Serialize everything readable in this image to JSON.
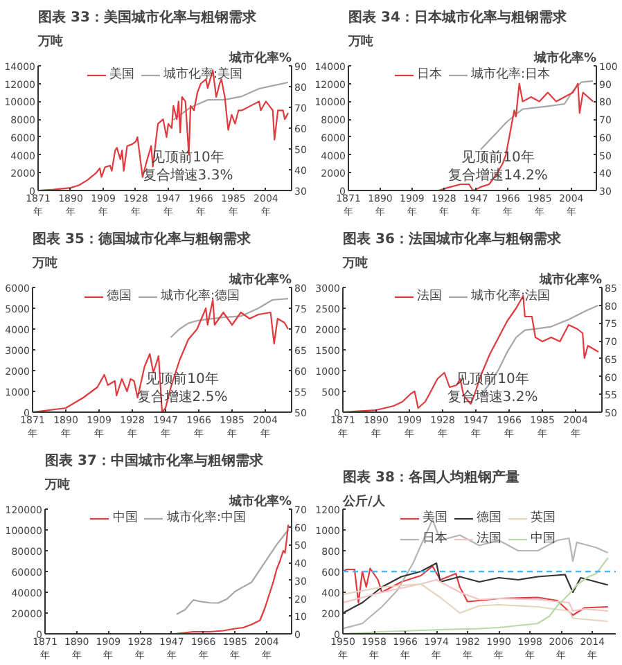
{
  "chart_data": [
    {
      "type": "line",
      "title": "图表 33：美国城市化率与粗钢需求",
      "ylabel": "万吨",
      "y2label": "城市化率%",
      "legend": "top",
      "annotations": [
        "见顶前10年",
        "复合增速3.3%"
      ],
      "xlim": [
        1871,
        2019
      ],
      "xticks": [
        {
          "value": 1871,
          "label": "1871\n年"
        },
        {
          "value": 1890,
          "label": "1890\n年"
        },
        {
          "value": 1909,
          "label": "1909\n年"
        },
        {
          "value": 1928,
          "label": "1928\n年"
        },
        {
          "value": 1947,
          "label": "1947\n年"
        },
        {
          "value": 1966,
          "label": "1966\n年"
        },
        {
          "value": 1985,
          "label": "1985\n年"
        },
        {
          "value": 2004,
          "label": "2004\n年"
        }
      ],
      "ylim": [
        0,
        14000
      ],
      "yticks": [
        0,
        2000,
        4000,
        6000,
        8000,
        10000,
        12000,
        14000
      ],
      "y2lim": [
        30,
        90
      ],
      "y2ticks": [
        30,
        40,
        50,
        60,
        70,
        80,
        90
      ],
      "series": [
        {
          "name": "美国",
          "color": "#e03a3e",
          "x": [
            1871,
            1880,
            1890,
            1895,
            1900,
            1905,
            1907,
            1908,
            1910,
            1913,
            1914,
            1916,
            1917,
            1919,
            1920,
            1921,
            1923,
            1926,
            1928,
            1929,
            1930,
            1932,
            1934,
            1937,
            1938,
            1940,
            1941,
            1944,
            1946,
            1947,
            1949,
            1950,
            1952,
            1953,
            1954,
            1955,
            1957,
            1959,
            1960,
            1962,
            1964,
            1966,
            1969,
            1970,
            1973,
            1975,
            1977,
            1978,
            1980,
            1982,
            1984,
            1986,
            1988,
            1990,
            1995,
            2000,
            2001,
            2004,
            2006,
            2008,
            2009,
            2011,
            2014,
            2015,
            2017
          ],
          "values": [
            0,
            100,
            300,
            600,
            1200,
            2000,
            2500,
            1500,
            2600,
            2800,
            2200,
            4500,
            4800,
            3500,
            4500,
            2200,
            5000,
            5200,
            5500,
            6000,
            4500,
            1500,
            3000,
            5000,
            2700,
            6000,
            7500,
            8000,
            6000,
            7500,
            7000,
            9500,
            8000,
            10000,
            6500,
            10500,
            10000,
            4000,
            9500,
            9000,
            11000,
            12000,
            12500,
            11500,
            13500,
            10500,
            12000,
            12500,
            10500,
            6800,
            8500,
            7500,
            9000,
            9000,
            9500,
            10000,
            9000,
            10000,
            9500,
            9000,
            5700,
            9000,
            9000,
            8000,
            8700
          ]
        },
        {
          "name": "城市化率:美国",
          "color": "#a6a6a6",
          "axis": "y2",
          "x": [
            1950,
            1960,
            1970,
            1980,
            1990,
            2000,
            2010,
            2017
          ],
          "values": [
            64,
            70,
            73.6,
            73.7,
            75.3,
            79,
            80.8,
            82
          ]
        }
      ]
    },
    {
      "type": "line",
      "title": "图表 34：日本城市化率与粗钢需求",
      "ylabel": "万吨",
      "y2label": "城市化率%",
      "legend": "top",
      "annotations": [
        "见顶前10年",
        "复合增速14.2%"
      ],
      "xlim": [
        1871,
        2019
      ],
      "xticks": [
        {
          "value": 1871,
          "label": "1871\n年"
        },
        {
          "value": 1890,
          "label": "1890\n年"
        },
        {
          "value": 1909,
          "label": "1909\n年"
        },
        {
          "value": 1928,
          "label": "1928\n年"
        },
        {
          "value": 1947,
          "label": "1947\n年"
        },
        {
          "value": 1966,
          "label": "1966\n年"
        },
        {
          "value": 1985,
          "label": "1985\n年"
        },
        {
          "value": 2004,
          "label": "2004\n年"
        }
      ],
      "ylim": [
        0,
        14000
      ],
      "yticks": [
        0,
        2000,
        4000,
        6000,
        8000,
        10000,
        12000,
        14000
      ],
      "y2lim": [
        30,
        100
      ],
      "y2ticks": [
        30,
        40,
        50,
        60,
        70,
        80,
        90,
        100
      ],
      "series": [
        {
          "name": "日本",
          "color": "#e03a3e",
          "x": [
            1871,
            1925,
            1930,
            1938,
            1943,
            1945,
            1946,
            1950,
            1955,
            1960,
            1963,
            1965,
            1968,
            1970,
            1971,
            1973,
            1975,
            1980,
            1985,
            1990,
            1995,
            2000,
            2005,
            2008,
            2009,
            2011,
            2014,
            2017
          ],
          "values": [
            0,
            0,
            300,
            700,
            700,
            100,
            0,
            400,
            700,
            2000,
            3000,
            4000,
            7000,
            9000,
            8300,
            12000,
            10000,
            10500,
            10000,
            11000,
            10000,
            10500,
            11000,
            12000,
            8700,
            11000,
            10500,
            10000
          ]
        },
        {
          "name": "城市化率:日本",
          "color": "#a6a6a6",
          "axis": "y2",
          "x": [
            1950,
            1955,
            1960,
            1965,
            1970,
            1975,
            1980,
            1990,
            2000,
            2005,
            2010,
            2017
          ],
          "values": [
            53,
            58,
            63,
            68,
            72,
            75.7,
            76.2,
            77.3,
            78.6,
            86,
            90.8,
            91.5
          ]
        }
      ]
    },
    {
      "type": "line",
      "title": "图表 35：德国城市化率与粗钢需求",
      "ylabel": "万吨",
      "y2label": "城市化率%",
      "legend": "top",
      "annotations": [
        "见顶前10年",
        "复合增速2.5%"
      ],
      "xlim": [
        1871,
        2019
      ],
      "xticks": [
        {
          "value": 1871,
          "label": "1871\n年"
        },
        {
          "value": 1890,
          "label": "1890\n年"
        },
        {
          "value": 1909,
          "label": "1909\n年"
        },
        {
          "value": 1928,
          "label": "1928\n年"
        },
        {
          "value": 1947,
          "label": "1947\n年"
        },
        {
          "value": 1966,
          "label": "1966\n年"
        },
        {
          "value": 1985,
          "label": "1985\n年"
        },
        {
          "value": 2004,
          "label": "2004\n年"
        }
      ],
      "ylim": [
        0,
        6000
      ],
      "yticks": [
        0,
        1000,
        2000,
        3000,
        4000,
        5000,
        6000
      ],
      "y2lim": [
        50,
        80
      ],
      "y2ticks": [
        50,
        55,
        60,
        65,
        70,
        75,
        80
      ],
      "series": [
        {
          "name": "德国",
          "color": "#e03a3e",
          "x": [
            1871,
            1890,
            1900,
            1908,
            1912,
            1914,
            1918,
            1919,
            1922,
            1925,
            1927,
            1929,
            1931,
            1935,
            1938,
            1940,
            1943,
            1945,
            1947,
            1950,
            1955,
            1960,
            1965,
            1970,
            1971,
            1974,
            1975,
            1980,
            1985,
            1990,
            1995,
            2000,
            2007,
            2009,
            2011,
            2015,
            2017
          ],
          "values": [
            0,
            200,
            700,
            1200,
            1800,
            1300,
            1500,
            800,
            1600,
            1000,
            1600,
            1500,
            700,
            2200,
            2800,
            1900,
            2700,
            0,
            200,
            1200,
            2500,
            3500,
            4000,
            5000,
            4200,
            5400,
            4200,
            4800,
            4200,
            4800,
            4500,
            4700,
            4800,
            3300,
            4500,
            4300,
            4000
          ]
        },
        {
          "name": "城市化率:德国",
          "color": "#a6a6a6",
          "axis": "y2",
          "x": [
            1950,
            1955,
            1960,
            1965,
            1970,
            1980,
            1990,
            2000,
            2008,
            2017
          ],
          "values": [
            68,
            70,
            71.4,
            72,
            72.3,
            72.8,
            73.1,
            75,
            77,
            77.3
          ]
        }
      ]
    },
    {
      "type": "line",
      "title": "图表 36：法国城市化率与粗钢需求",
      "ylabel": "万吨",
      "y2label": "城市化率%",
      "legend": "top",
      "annotations": [
        "见顶前10年",
        "复合增速3.2%"
      ],
      "xlim": [
        1871,
        2019
      ],
      "xticks": [
        {
          "value": 1871,
          "label": "1871\n年"
        },
        {
          "value": 1890,
          "label": "1890\n年"
        },
        {
          "value": 1909,
          "label": "1909\n年"
        },
        {
          "value": 1928,
          "label": "1928\n年"
        },
        {
          "value": 1947,
          "label": "1947\n年"
        },
        {
          "value": 1966,
          "label": "1966\n年"
        },
        {
          "value": 1985,
          "label": "1985\n年"
        },
        {
          "value": 2004,
          "label": "2004\n年"
        }
      ],
      "ylim": [
        0,
        3000
      ],
      "yticks": [
        0,
        500,
        1000,
        1500,
        2000,
        2500,
        3000
      ],
      "y2lim": [
        50,
        85
      ],
      "y2ticks": [
        50,
        55,
        60,
        65,
        70,
        75,
        80,
        85
      ],
      "series": [
        {
          "name": "法国",
          "color": "#e03a3e",
          "x": [
            1871,
            1890,
            1900,
            1905,
            1910,
            1912,
            1914,
            1918,
            1920,
            1925,
            1929,
            1932,
            1936,
            1938,
            1940,
            1944,
            1946,
            1950,
            1955,
            1960,
            1965,
            1970,
            1974,
            1975,
            1979,
            1981,
            1985,
            1990,
            1995,
            2000,
            2005,
            2008,
            2009,
            2011,
            2015,
            2017
          ],
          "values": [
            0,
            50,
            150,
            250,
            450,
            500,
            100,
            250,
            400,
            800,
            950,
            600,
            650,
            800,
            400,
            200,
            400,
            900,
            1400,
            1800,
            2200,
            2500,
            2800,
            2300,
            2300,
            1800,
            1700,
            1800,
            1700,
            2100,
            2000,
            1900,
            1300,
            1600,
            1500,
            1450
          ]
        },
        {
          "name": "城市化率:法国",
          "color": "#a6a6a6",
          "axis": "y2",
          "x": [
            1950,
            1955,
            1960,
            1965,
            1970,
            1975,
            1980,
            1990,
            2000,
            2010,
            2017
          ],
          "values": [
            55,
            58,
            62,
            67,
            71,
            73,
            73.3,
            74,
            76,
            78.5,
            80
          ]
        }
      ]
    },
    {
      "type": "line",
      "title": "图表 37：中国城市化率与粗钢需求",
      "ylabel": "万吨",
      "y2label": "城市化率%",
      "legend": "top",
      "xlim": [
        1871,
        2019
      ],
      "xticks": [
        {
          "value": 1871,
          "label": "1871\n年"
        },
        {
          "value": 1890,
          "label": "1890\n年"
        },
        {
          "value": 1909,
          "label": "1909\n年"
        },
        {
          "value": 1928,
          "label": "1928\n年"
        },
        {
          "value": 1947,
          "label": "1947\n年"
        },
        {
          "value": 1966,
          "label": "1966\n年"
        },
        {
          "value": 1985,
          "label": "1985\n年"
        },
        {
          "value": 2004,
          "label": "2004\n年"
        }
      ],
      "ylim": [
        0,
        120000
      ],
      "yticks": [
        0,
        20000,
        40000,
        60000,
        80000,
        100000,
        120000
      ],
      "y2lim": [
        0,
        70
      ],
      "y2ticks": [
        0,
        10,
        20,
        30,
        40,
        50,
        60,
        70
      ],
      "series": [
        {
          "name": "中国",
          "color": "#e03a3e",
          "x": [
            1871,
            1949,
            1960,
            1970,
            1978,
            1985,
            1990,
            1995,
            2000,
            2003,
            2005,
            2008,
            2010,
            2012,
            2014,
            2015,
            2016,
            2017
          ],
          "values": [
            0,
            0,
            2000,
            2000,
            3000,
            5000,
            6000,
            9000,
            13000,
            25000,
            35000,
            50000,
            62000,
            70000,
            80000,
            78000,
            90000,
            105000
          ]
        },
        {
          "name": "城市化率:中国",
          "color": "#a6a6a6",
          "axis": "y2",
          "x": [
            1950,
            1955,
            1960,
            1965,
            1970,
            1975,
            1980,
            1985,
            1990,
            1995,
            2000,
            2005,
            2010,
            2015,
            2017
          ],
          "values": [
            11,
            13.5,
            19,
            18,
            17.4,
            17.3,
            19.4,
            23.7,
            26.4,
            29,
            36,
            43,
            50,
            56,
            58.5
          ]
        }
      ]
    },
    {
      "type": "line",
      "title": "图表 38：各国人均粗钢产量",
      "ylabel": "公斤/人",
      "legend": "top",
      "xlim": [
        1950,
        2020
      ],
      "xticks": [
        {
          "value": 1950,
          "label": "1950\n年"
        },
        {
          "value": 1958,
          "label": "1958\n年"
        },
        {
          "value": 1966,
          "label": "1966\n年"
        },
        {
          "value": 1974,
          "label": "1974\n年"
        },
        {
          "value": 1982,
          "label": "1982\n年"
        },
        {
          "value": 1990,
          "label": "1990\n年"
        },
        {
          "value": 1998,
          "label": "1998\n年"
        },
        {
          "value": 2006,
          "label": "2006\n年"
        },
        {
          "value": 2014,
          "label": "2014\n年"
        }
      ],
      "ylim": [
        0,
        1200
      ],
      "yticks": [
        0,
        200,
        400,
        600,
        800,
        1000,
        1200
      ],
      "ref_lines": [
        {
          "axis": "y",
          "value": 600,
          "color": "#4fb3e8",
          "line_style": "dashed"
        }
      ],
      "series": [
        {
          "name": "美国",
          "color": "#e03a3e",
          "x": [
            1950,
            1951,
            1953,
            1954,
            1955,
            1956,
            1957,
            1959,
            1960,
            1965,
            1970,
            1973,
            1975,
            1979,
            1980,
            1982,
            1985,
            1990,
            2000,
            2005,
            2009,
            2012,
            2018
          ],
          "values": [
            600,
            620,
            620,
            300,
            600,
            450,
            630,
            520,
            400,
            500,
            560,
            650,
            520,
            580,
            450,
            310,
            320,
            340,
            350,
            320,
            180,
            250,
            260
          ]
        },
        {
          "name": "日本",
          "color": "#b5b5b5",
          "x": [
            1950,
            1955,
            1960,
            1964,
            1968,
            1970,
            1973,
            1975,
            1980,
            1985,
            1990,
            1995,
            2000,
            2005,
            2008,
            2009,
            2010,
            2015,
            2018
          ],
          "values": [
            50,
            100,
            260,
            420,
            680,
            850,
            1100,
            900,
            950,
            850,
            900,
            800,
            800,
            900,
            920,
            700,
            880,
            830,
            780
          ]
        },
        {
          "name": "德国",
          "color": "#333333",
          "x": [
            1950,
            1955,
            1960,
            1965,
            1970,
            1974,
            1975,
            1980,
            1985,
            1990,
            1995,
            2000,
            2007,
            2009,
            2011,
            2018
          ],
          "values": [
            200,
            300,
            450,
            550,
            600,
            680,
            500,
            550,
            500,
            540,
            520,
            550,
            570,
            400,
            540,
            470
          ]
        },
        {
          "name": "法国",
          "color": "#f2c4c4",
          "x": [
            1950,
            1960,
            1970,
            1974,
            1980,
            1985,
            1990,
            2000,
            2008,
            2009,
            2012,
            2018
          ],
          "values": [
            300,
            400,
            480,
            520,
            400,
            330,
            340,
            330,
            300,
            220,
            240,
            220
          ]
        },
        {
          "name": "英国",
          "color": "#e6d5bd",
          "x": [
            1950,
            1960,
            1970,
            1975,
            1980,
            1985,
            1990,
            2000,
            2008,
            2009,
            2018
          ],
          "values": [
            380,
            450,
            480,
            350,
            200,
            270,
            280,
            260,
            220,
            150,
            120
          ]
        },
        {
          "name": "中国",
          "color": "#b9d9a6",
          "x": [
            1950,
            1960,
            1975,
            1985,
            1990,
            1995,
            2000,
            2003,
            2005,
            2008,
            2010,
            2013,
            2015,
            2018
          ],
          "values": [
            0,
            20,
            40,
            50,
            60,
            80,
            100,
            170,
            270,
            380,
            470,
            550,
            580,
            730
          ]
        }
      ]
    }
  ]
}
